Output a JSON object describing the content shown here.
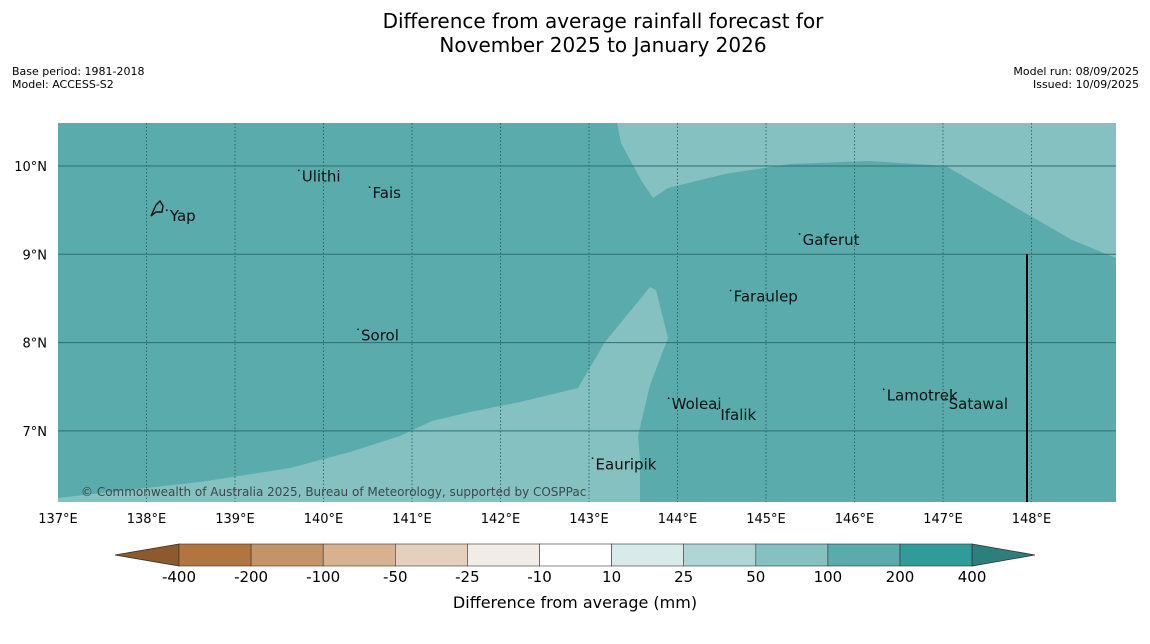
{
  "title": {
    "line1": "Difference from average rainfall forecast for",
    "line2": "November 2025 to January 2026"
  },
  "meta_left": {
    "base_period": "Base period: 1981-2018",
    "model": "Model: ACCESS-S2"
  },
  "meta_right": {
    "model_run": "Model run: 08/09/2025",
    "issued": "Issued: 10/09/2025"
  },
  "map": {
    "lon_range": [
      137,
      149
    ],
    "lat_range": [
      6.2,
      10.5
    ],
    "lon_ticks": [
      {
        "value": 137,
        "label": "137°E"
      },
      {
        "value": 138,
        "label": "138°E"
      },
      {
        "value": 139,
        "label": "139°E"
      },
      {
        "value": 140,
        "label": "140°E"
      },
      {
        "value": 141,
        "label": "141°E"
      },
      {
        "value": 142,
        "label": "142°E"
      },
      {
        "value": 143,
        "label": "143°E"
      },
      {
        "value": 144,
        "label": "144°E"
      },
      {
        "value": 145,
        "label": "145°E"
      },
      {
        "value": 146,
        "label": "146°E"
      },
      {
        "value": 147,
        "label": "147°E"
      },
      {
        "value": 148,
        "label": "148°E"
      }
    ],
    "lat_ticks": [
      {
        "value": 10,
        "label": "10°N"
      },
      {
        "value": 9,
        "label": "9°N"
      },
      {
        "value": 8,
        "label": "8°N"
      },
      {
        "value": 7,
        "label": "7°N"
      }
    ],
    "places": [
      {
        "name": "Yap",
        "lon": 138.23,
        "lat": 9.5
      },
      {
        "name": "Ulithi",
        "lon": 139.72,
        "lat": 9.95
      },
      {
        "name": "Fais",
        "lon": 140.52,
        "lat": 9.76
      },
      {
        "name": "Gaferut",
        "lon": 145.38,
        "lat": 9.23
      },
      {
        "name": "Faraulep",
        "lon": 144.6,
        "lat": 8.59
      },
      {
        "name": "Sorol",
        "lon": 140.39,
        "lat": 8.15
      },
      {
        "name": "Woleai",
        "lon": 143.9,
        "lat": 7.37
      },
      {
        "name": "Ifalik",
        "lon": 144.45,
        "lat": 7.25
      },
      {
        "name": "Lamotrek",
        "lon": 146.33,
        "lat": 7.47
      },
      {
        "name": "Satawal",
        "lon": 147.03,
        "lat": 7.37
      },
      {
        "name": "Eauripik",
        "lon": 143.04,
        "lat": 6.69
      }
    ],
    "copyright": "© Commonwealth of Australia 2025, Bureau of Meteorology, supported by COSPPac",
    "colors": {
      "band_100_200": "#5aabab",
      "band_50_100": "#85c1c0",
      "grid": "#2f6f6f"
    }
  },
  "colorbar": {
    "label": "Difference from average (mm)",
    "ticks": [
      "-400",
      "-200",
      "-100",
      "-50",
      "-25",
      "-10",
      "10",
      "25",
      "50",
      "100",
      "200",
      "400"
    ],
    "colors": [
      "#8c5a2b",
      "#b27540",
      "#c49469",
      "#d6b291",
      "#e5d0bd",
      "#f1ede6",
      "#ffffff",
      "#d9eaea",
      "#afd5d5",
      "#85c1c0",
      "#5aabab",
      "#319b9a",
      "#2d7f7d"
    ]
  }
}
